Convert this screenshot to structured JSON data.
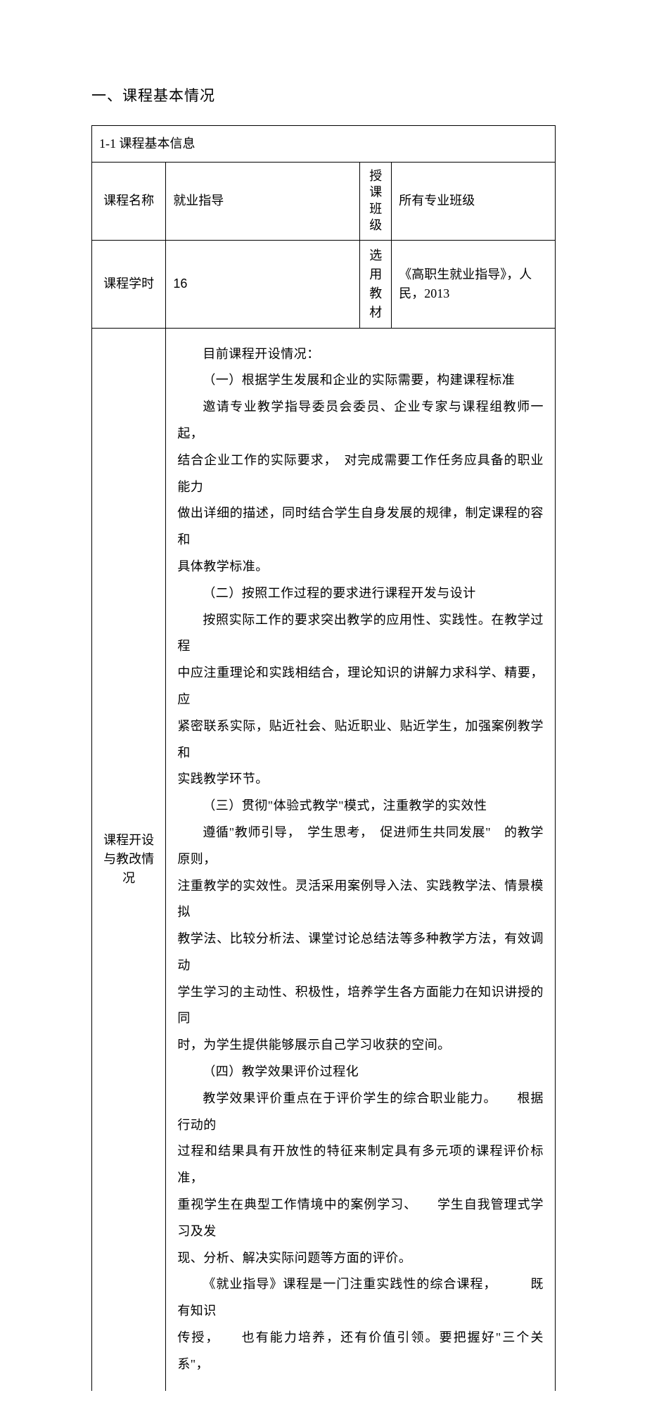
{
  "heading": "一、课程基本情况",
  "section_header": "1-1  课程基本信息",
  "row1": {
    "label1": "课程名称",
    "value1": "就业指导",
    "label2": "授课班级",
    "value2": "所有专业班级"
  },
  "row2": {
    "label1": "课程学时",
    "value1": "16",
    "label2": "选用教材",
    "value2": "《高职生就业指导》，人民，2013"
  },
  "row3": {
    "label": "课程开设与教改情况",
    "paragraphs": [
      {
        "text": "目前课程开设情况：",
        "indent": true
      },
      {
        "text": "（一）根据学生发展和企业的实际需要，构建课程标准",
        "indent": true
      },
      {
        "text": "邀请专业教学指导委员会委员、企业专家与课程组教师一起，",
        "indent": true
      },
      {
        "text": "结合企业工作的实际要求，　对完成需要工作任务应具备的职业能力",
        "indent": false
      },
      {
        "text": "做出详细的描述，同时结合学生自身发展的规律，制定课程的容和",
        "indent": false
      },
      {
        "text": "具体教学标准。",
        "indent": false
      },
      {
        "text": "（二）按照工作过程的要求进行课程开发与设计",
        "indent": true
      },
      {
        "text": "按照实际工作的要求突出教学的应用性、实践性。在教学过程",
        "indent": true
      },
      {
        "text": "中应注重理论和实践相结合，理论知识的讲解力求科学、精要，应",
        "indent": false
      },
      {
        "text": "紧密联系实际，贴近社会、贴近职业、贴近学生，加强案例教学和",
        "indent": false
      },
      {
        "text": "实践教学环节。",
        "indent": false
      },
      {
        "text": "（三）贯彻\"体验式教学\"模式，注重教学的实效性",
        "indent": true
      },
      {
        "text": "遵循\"教师引导，　学生思考，　促进师生共同发展\"　的教学原则，",
        "indent": true
      },
      {
        "text": "注重教学的实效性。灵活采用案例导入法、实践教学法、情景模拟",
        "indent": false
      },
      {
        "text": "教学法、比较分析法、课堂讨论总结法等多种教学方法，有效调动",
        "indent": false
      },
      {
        "text": "学生学习的主动性、积极性，培养学生各方面能力在知识讲授的同",
        "indent": false
      },
      {
        "text": "时，为学生提供能够展示自己学习收获的空间。",
        "indent": false
      },
      {
        "text": "（四）教学效果评价过程化",
        "indent": true
      },
      {
        "text": "教学效果评价重点在于评价学生的综合职业能力。　　根据行动的",
        "indent": true
      },
      {
        "text": "过程和结果具有开放性的特征来制定具有多元项的课程评价标准，",
        "indent": false
      },
      {
        "text": "重视学生在典型工作情境中的案例学习、　　学生自我管理式学习及发",
        "indent": false
      },
      {
        "text": "现、分析、解决实际问题等方面的评价。",
        "indent": false
      },
      {
        "text": "《就业指导》课程是一门注重实践性的综合课程，　　　既有知识",
        "indent": true
      },
      {
        "text": "传授，　　也有能力培养，还有价值引领。要把握好\"三个关系\"，",
        "indent": false
      }
    ]
  }
}
